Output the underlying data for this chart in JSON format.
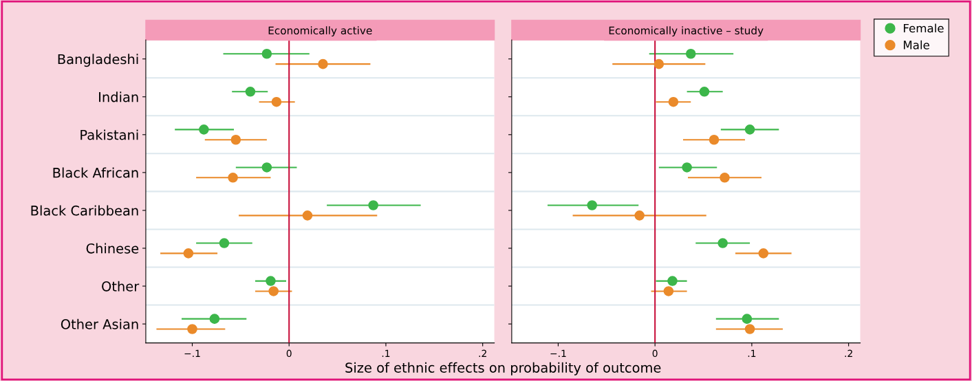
{
  "chart_data": [
    {
      "type": "scatter",
      "title": "Economically active",
      "xlabel": "Size of ethnic effects on probability of outcome",
      "orientation": "horizontal",
      "categories": [
        "Bangladeshi",
        "Indian",
        "Pakistani",
        "Black African",
        "Black Caribbean",
        "Chinese",
        "Other",
        "Other Asian"
      ],
      "series": [
        {
          "name": "Female",
          "color": "#3cb64a",
          "values": [
            -0.023,
            -0.04,
            -0.088,
            -0.023,
            0.087,
            -0.067,
            -0.019,
            -0.077
          ],
          "errors": [
            [
              -0.068,
              0.021
            ],
            [
              -0.059,
              -0.022
            ],
            [
              -0.118,
              -0.057
            ],
            [
              -0.055,
              0.008
            ],
            [
              0.039,
              0.136
            ],
            [
              -0.096,
              -0.038
            ],
            [
              -0.035,
              -0.003
            ],
            [
              -0.111,
              -0.044
            ]
          ]
        },
        {
          "name": "Male",
          "color": "#ea8a2a",
          "values": [
            0.035,
            -0.013,
            -0.055,
            -0.058,
            0.019,
            -0.104,
            -0.016,
            -0.1
          ],
          "errors": [
            [
              -0.014,
              0.084
            ],
            [
              -0.031,
              0.006
            ],
            [
              -0.087,
              -0.023
            ],
            [
              -0.096,
              -0.019
            ],
            [
              -0.052,
              0.091
            ],
            [
              -0.133,
              -0.074
            ],
            [
              -0.035,
              0.003
            ],
            [
              -0.137,
              -0.066
            ]
          ]
        }
      ],
      "xlim": [
        -0.148,
        0.212
      ],
      "xticks": [
        {
          "value": -0.1,
          "label": "−.1"
        },
        0,
        {
          "value": 0.1,
          "label": ".1"
        },
        {
          "value": 0.2,
          "label": ".2"
        }
      ],
      "ref_lines": [
        {
          "axis": "x",
          "value": 0,
          "color": "#c8103c"
        }
      ],
      "grid": "y",
      "marker": "circle",
      "legend": "right"
    },
    {
      "type": "scatter",
      "title": "Economically inactive – study",
      "orientation": "horizontal",
      "categories": [
        null,
        null,
        null,
        null,
        null,
        null,
        null,
        null
      ],
      "series": [
        {
          "color": "#3cb64a",
          "values": [
            0.037,
            0.051,
            0.098,
            0.033,
            -0.065,
            0.07,
            0.018,
            0.095
          ],
          "errors": [
            [
              -0.006,
              0.081
            ],
            [
              0.033,
              0.07
            ],
            [
              0.068,
              0.128
            ],
            [
              0.004,
              0.064
            ],
            [
              -0.111,
              -0.017
            ],
            [
              0.042,
              0.098
            ],
            [
              0.001,
              0.033
            ],
            [
              0.063,
              0.128
            ]
          ]
        },
        {
          "color": "#ea8a2a",
          "values": [
            0.004,
            0.019,
            0.061,
            0.072,
            -0.016,
            0.112,
            0.014,
            0.098
          ],
          "errors": [
            [
              -0.044,
              0.052
            ],
            [
              0.001,
              0.037
            ],
            [
              0.029,
              0.093
            ],
            [
              0.034,
              0.11
            ],
            [
              -0.085,
              0.053
            ],
            [
              0.083,
              0.141
            ],
            [
              -0.004,
              0.033
            ],
            [
              0.063,
              0.132
            ]
          ]
        }
      ],
      "xlim": [
        -0.148,
        0.212
      ],
      "xticks": [
        {
          "value": -0.1,
          "label": "−.1"
        },
        0,
        {
          "value": 0.1,
          "label": ".1"
        },
        {
          "value": 0.2,
          "label": ".2"
        }
      ],
      "ref_lines": [
        {
          "axis": "x",
          "value": 0,
          "color": "#c8103c"
        }
      ],
      "grid": "y",
      "marker": "circle",
      "tick_labels": "x"
    }
  ]
}
